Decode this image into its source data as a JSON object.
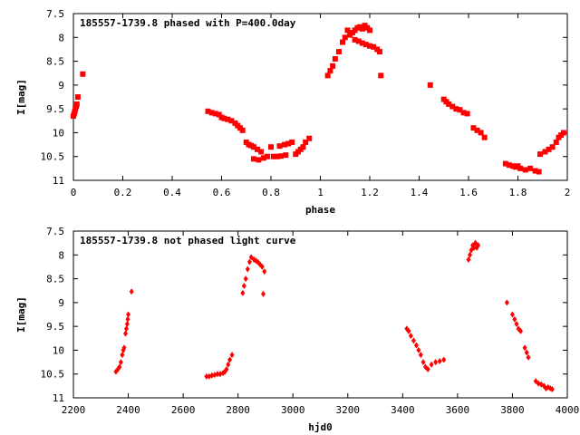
{
  "chart_data": [
    {
      "type": "scatter",
      "title": "185557-1739.8 phased with P=400.0day",
      "xlabel": "phase",
      "ylabel": "I[mag]",
      "xlim": [
        0,
        2
      ],
      "ylim": [
        11,
        7.5
      ],
      "y_inverted": true,
      "x_ticks": [
        "0",
        "0.2",
        "0.4",
        "0.6",
        "0.8",
        "1",
        "1.2",
        "1.4",
        "1.6",
        "1.8",
        "2"
      ],
      "y_ticks": [
        "7.5",
        "8",
        "8.5",
        "9",
        "9.5",
        "10",
        "10.5",
        "11"
      ],
      "marker": "filled-square",
      "color": "#ff0000",
      "series": [
        {
          "points": [
            [
              0.0,
              9.65
            ],
            [
              0.003,
              9.6
            ],
            [
              0.006,
              9.55
            ],
            [
              0.008,
              9.5
            ],
            [
              0.011,
              9.45
            ],
            [
              0.014,
              9.4
            ],
            [
              0.018,
              9.25
            ],
            [
              0.038,
              8.77
            ],
            [
              0.545,
              9.55
            ],
            [
              0.56,
              9.58
            ],
            [
              0.575,
              9.6
            ],
            [
              0.59,
              9.62
            ],
            [
              0.6,
              9.68
            ],
            [
              0.61,
              9.7
            ],
            [
              0.625,
              9.72
            ],
            [
              0.64,
              9.75
            ],
            [
              0.655,
              9.8
            ],
            [
              0.665,
              9.85
            ],
            [
              0.675,
              9.9
            ],
            [
              0.685,
              9.95
            ],
            [
              0.7,
              10.2
            ],
            [
              0.71,
              10.25
            ],
            [
              0.72,
              10.27
            ],
            [
              0.73,
              10.3
            ],
            [
              0.745,
              10.35
            ],
            [
              0.76,
              10.4
            ],
            [
              0.73,
              10.55
            ],
            [
              0.75,
              10.57
            ],
            [
              0.77,
              10.53
            ],
            [
              0.785,
              10.5
            ],
            [
              0.8,
              10.3
            ],
            [
              0.81,
              10.5
            ],
            [
              0.825,
              10.5
            ],
            [
              0.84,
              10.49
            ],
            [
              0.86,
              10.47
            ],
            [
              0.835,
              10.28
            ],
            [
              0.855,
              10.25
            ],
            [
              0.87,
              10.23
            ],
            [
              0.885,
              10.2
            ],
            [
              0.9,
              10.45
            ],
            [
              0.91,
              10.4
            ],
            [
              0.92,
              10.35
            ],
            [
              0.93,
              10.3
            ],
            [
              0.94,
              10.2
            ],
            [
              0.955,
              10.12
            ],
            [
              1.03,
              8.8
            ],
            [
              1.04,
              8.7
            ],
            [
              1.05,
              8.6
            ],
            [
              1.06,
              8.45
            ],
            [
              1.075,
              8.3
            ],
            [
              1.09,
              8.1
            ],
            [
              1.1,
              8.0
            ],
            [
              1.11,
              7.85
            ],
            [
              1.12,
              7.95
            ],
            [
              1.13,
              7.9
            ],
            [
              1.14,
              7.85
            ],
            [
              1.15,
              7.8
            ],
            [
              1.16,
              7.78
            ],
            [
              1.17,
              7.82
            ],
            [
              1.18,
              7.75
            ],
            [
              1.19,
              7.8
            ],
            [
              1.2,
              7.85
            ],
            [
              1.14,
              8.05
            ],
            [
              1.155,
              8.08
            ],
            [
              1.17,
              8.12
            ],
            [
              1.185,
              8.15
            ],
            [
              1.2,
              8.18
            ],
            [
              1.215,
              8.2
            ],
            [
              1.23,
              8.25
            ],
            [
              1.24,
              8.3
            ],
            [
              1.245,
              8.8
            ],
            [
              1.445,
              9.0
            ],
            [
              1.5,
              9.3
            ],
            [
              1.51,
              9.35
            ],
            [
              1.52,
              9.4
            ],
            [
              1.535,
              9.45
            ],
            [
              1.55,
              9.5
            ],
            [
              1.565,
              9.52
            ],
            [
              1.58,
              9.58
            ],
            [
              1.595,
              9.6
            ],
            [
              1.62,
              9.9
            ],
            [
              1.635,
              9.95
            ],
            [
              1.65,
              10.0
            ],
            [
              1.665,
              10.1
            ],
            [
              1.75,
              10.65
            ],
            [
              1.765,
              10.68
            ],
            [
              1.78,
              10.7
            ],
            [
              1.79,
              10.72
            ],
            [
              1.8,
              10.7
            ],
            [
              1.81,
              10.75
            ],
            [
              1.83,
              10.78
            ],
            [
              1.85,
              10.75
            ],
            [
              1.87,
              10.8
            ],
            [
              1.885,
              10.82
            ],
            [
              1.89,
              10.45
            ],
            [
              1.91,
              10.4
            ],
            [
              1.925,
              10.35
            ],
            [
              1.94,
              10.3
            ],
            [
              1.955,
              10.2
            ],
            [
              1.965,
              10.1
            ],
            [
              1.975,
              10.05
            ],
            [
              1.985,
              10.0
            ]
          ]
        }
      ]
    },
    {
      "type": "scatter",
      "title": "185557-1739.8 not phased light curve",
      "xlabel": "hjd0",
      "ylabel": "I[mag]",
      "xlim": [
        2200,
        4000
      ],
      "ylim": [
        11,
        7.5
      ],
      "y_inverted": true,
      "x_ticks": [
        "2200",
        "2400",
        "2600",
        "2800",
        "3000",
        "3200",
        "3400",
        "3600",
        "3800",
        "4000"
      ],
      "y_ticks": [
        "7.5",
        "8",
        "8.5",
        "9",
        "9.5",
        "10",
        "10.5",
        "11"
      ],
      "marker": "filled-diamond",
      "color": "#ff0000",
      "series": [
        {
          "points": [
            [
              2355,
              10.45
            ],
            [
              2362,
              10.4
            ],
            [
              2368,
              10.35
            ],
            [
              2373,
              10.25
            ],
            [
              2378,
              10.1
            ],
            [
              2382,
              10.0
            ],
            [
              2385,
              9.95
            ],
            [
              2390,
              9.65
            ],
            [
              2393,
              9.55
            ],
            [
              2396,
              9.45
            ],
            [
              2398,
              9.35
            ],
            [
              2400,
              9.25
            ],
            [
              2412,
              8.77
            ],
            [
              2685,
              10.55
            ],
            [
              2695,
              10.55
            ],
            [
              2705,
              10.53
            ],
            [
              2715,
              10.52
            ],
            [
              2725,
              10.5
            ],
            [
              2735,
              10.5
            ],
            [
              2745,
              10.48
            ],
            [
              2752,
              10.45
            ],
            [
              2758,
              10.4
            ],
            [
              2764,
              10.3
            ],
            [
              2770,
              10.2
            ],
            [
              2778,
              10.1
            ],
            [
              2817,
              8.8
            ],
            [
              2822,
              8.65
            ],
            [
              2828,
              8.5
            ],
            [
              2835,
              8.3
            ],
            [
              2842,
              8.15
            ],
            [
              2848,
              8.05
            ],
            [
              2858,
              8.1
            ],
            [
              2865,
              8.12
            ],
            [
              2872,
              8.15
            ],
            [
              2880,
              8.2
            ],
            [
              2888,
              8.25
            ],
            [
              2896,
              8.35
            ],
            [
              2892,
              8.82
            ],
            [
              3415,
              9.55
            ],
            [
              3422,
              9.6
            ],
            [
              3430,
              9.7
            ],
            [
              3440,
              9.8
            ],
            [
              3450,
              9.9
            ],
            [
              3458,
              10.0
            ],
            [
              3466,
              10.1
            ],
            [
              3475,
              10.25
            ],
            [
              3483,
              10.35
            ],
            [
              3492,
              10.4
            ],
            [
              3505,
              10.3
            ],
            [
              3520,
              10.25
            ],
            [
              3535,
              10.23
            ],
            [
              3550,
              10.2
            ],
            [
              3640,
              8.1
            ],
            [
              3645,
              8.0
            ],
            [
              3650,
              7.9
            ],
            [
              3655,
              7.8
            ],
            [
              3660,
              7.85
            ],
            [
              3665,
              7.75
            ],
            [
              3670,
              7.85
            ],
            [
              3675,
              7.8
            ],
            [
              3780,
              9.0
            ],
            [
              3800,
              9.25
            ],
            [
              3808,
              9.35
            ],
            [
              3815,
              9.45
            ],
            [
              3822,
              9.55
            ],
            [
              3830,
              9.6
            ],
            [
              3845,
              9.95
            ],
            [
              3852,
              10.05
            ],
            [
              3858,
              10.15
            ],
            [
              3885,
              10.65
            ],
            [
              3895,
              10.7
            ],
            [
              3905,
              10.72
            ],
            [
              3915,
              10.75
            ],
            [
              3922,
              10.8
            ],
            [
              3930,
              10.78
            ],
            [
              3938,
              10.8
            ],
            [
              3945,
              10.82
            ]
          ]
        }
      ]
    }
  ]
}
